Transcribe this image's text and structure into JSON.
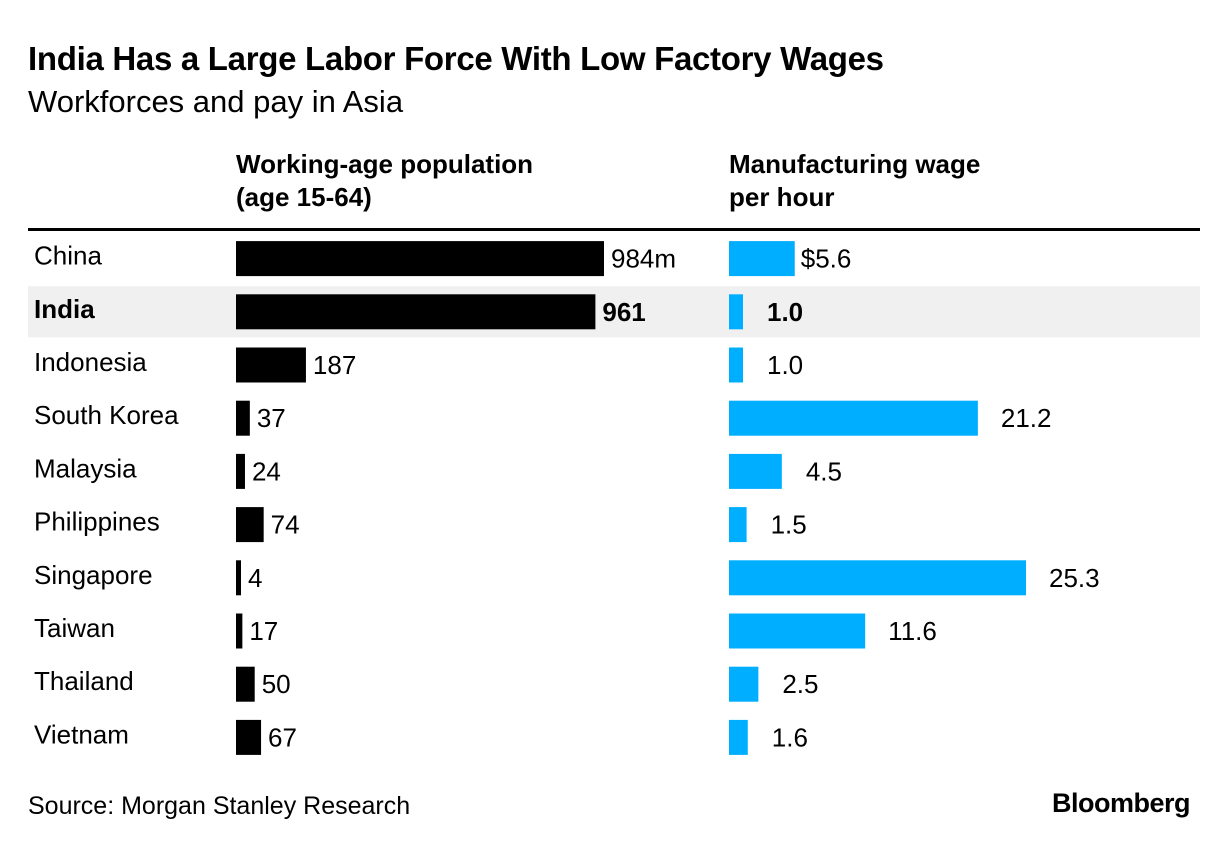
{
  "title": "India Has a Large Labor Force With Low Factory Wages",
  "subtitle": "Workforces and pay in Asia",
  "source": "Source: Morgan Stanley Research",
  "brand": "Bloomberg",
  "colors": {
    "population_bar": "#000000",
    "wage_bar": "#00aeff",
    "highlight_row": "#f0f0f0"
  },
  "chart_data": {
    "type": "bar",
    "orientation": "horizontal",
    "highlight": "India",
    "categories": [
      "China",
      "India",
      "Indonesia",
      "South Korea",
      "Malaysia",
      "Philippines",
      "Singapore",
      "Taiwan",
      "Thailand",
      "Vietnam"
    ],
    "series": [
      {
        "name_lines": [
          "Working-age population",
          "(age 15-64)"
        ],
        "values": [
          984,
          961,
          187,
          37,
          24,
          74,
          4,
          17,
          50,
          67
        ],
        "labels": [
          "984m",
          "961",
          "187",
          "37",
          "24",
          "74",
          "4",
          "17",
          "50",
          "67"
        ]
      },
      {
        "name_lines": [
          "Manufacturing wage",
          "per hour"
        ],
        "values": [
          5.6,
          1.0,
          1.0,
          21.2,
          4.5,
          1.5,
          25.3,
          11.6,
          2.5,
          1.6
        ],
        "labels": [
          "$5.6",
          "1.0",
          "1.0",
          "21.2",
          "4.5",
          "1.5",
          "25.3",
          "11.6",
          "2.5",
          "1.6"
        ]
      }
    ]
  }
}
